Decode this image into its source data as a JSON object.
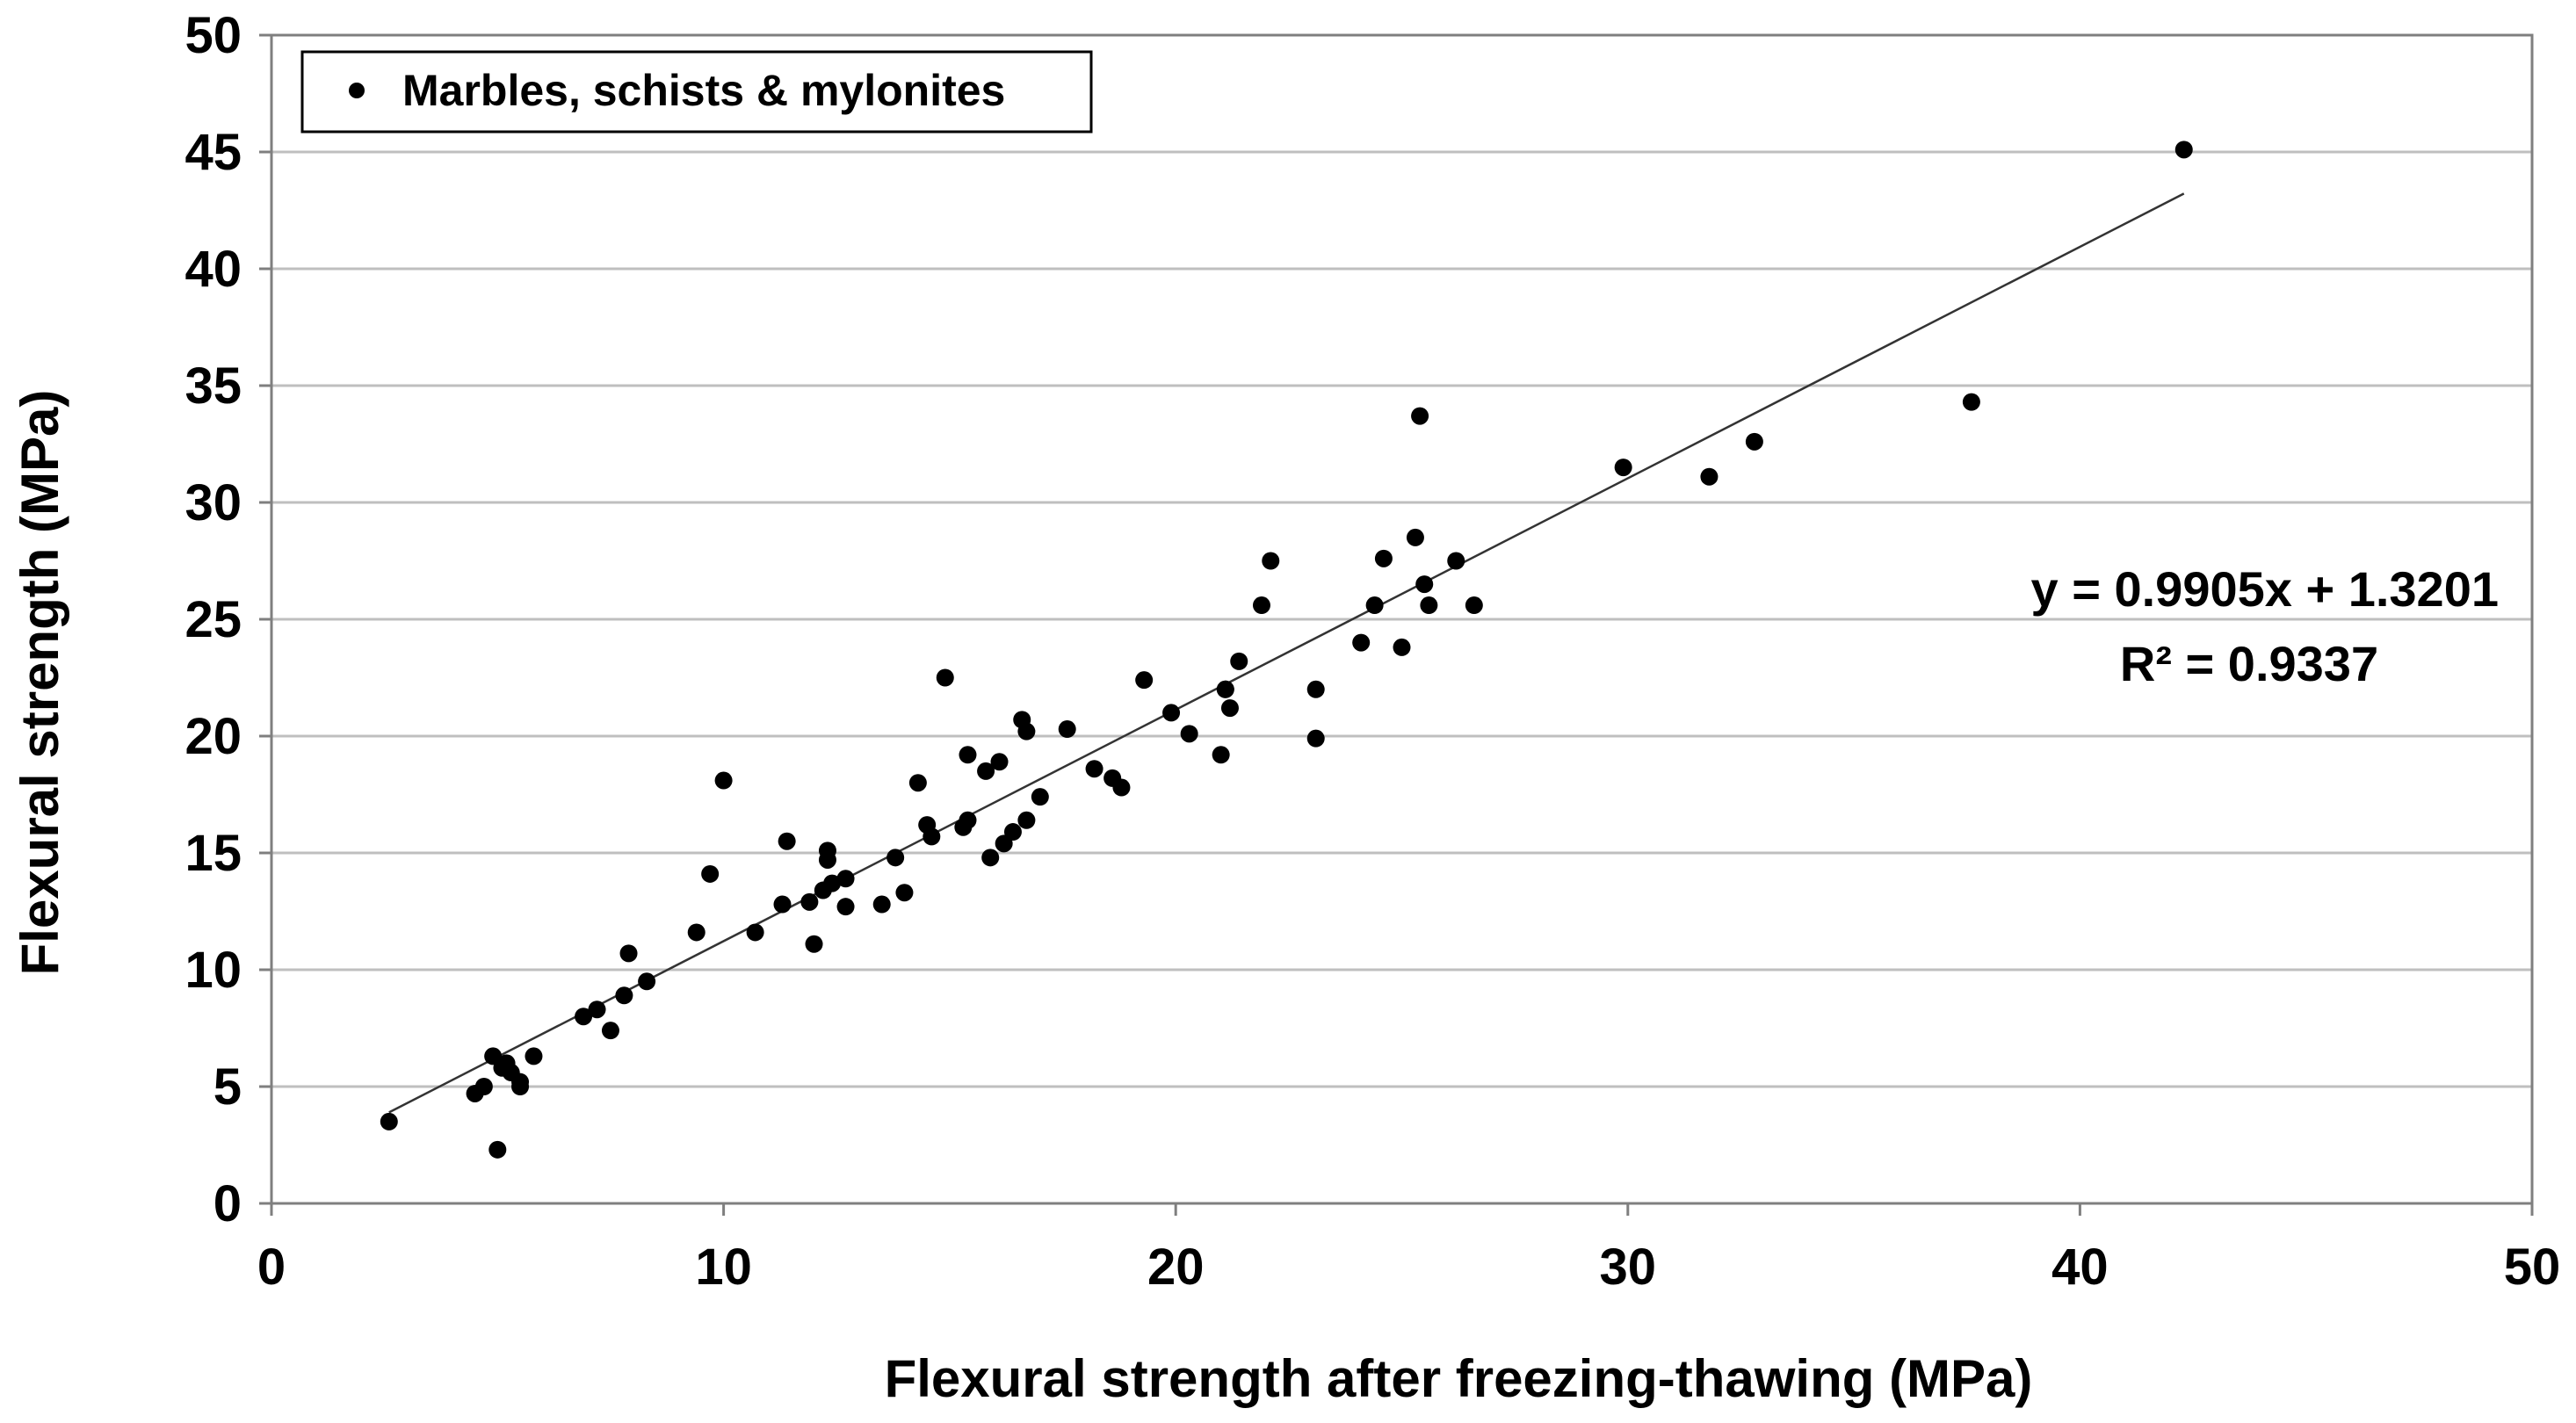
{
  "chart_data": {
    "type": "scatter",
    "xlabel": "Flexural strength after freezing-thawing (MPa)",
    "ylabel": "Flexural strength (MPa)",
    "xlim": [
      0,
      50
    ],
    "ylim": [
      0,
      50
    ],
    "xticks": [
      0,
      10,
      20,
      30,
      40,
      50
    ],
    "yticks": [
      0,
      5,
      10,
      15,
      20,
      25,
      30,
      35,
      40,
      45,
      50
    ],
    "grid": "horizontal",
    "legend": {
      "position": "top-left",
      "entries": [
        "Marbles, schists & mylonites"
      ]
    },
    "series": [
      {
        "name": "Marbles, schists & mylonites",
        "x": [
          2.6,
          4.5,
          4.7,
          4.9,
          5.0,
          5.1,
          5.2,
          5.3,
          5.5,
          5.5,
          5.8,
          6.9,
          7.2,
          7.5,
          7.8,
          7.9,
          8.3,
          9.4,
          9.7,
          10.0,
          10.7,
          11.3,
          11.4,
          11.9,
          12.0,
          12.2,
          12.3,
          12.3,
          12.4,
          12.7,
          12.7,
          13.5,
          13.8,
          14.0,
          14.3,
          14.5,
          14.6,
          14.9,
          15.3,
          15.4,
          15.4,
          15.8,
          15.9,
          16.1,
          16.2,
          16.4,
          16.6,
          16.7,
          16.7,
          17.0,
          17.6,
          18.2,
          18.6,
          18.8,
          19.3,
          19.9,
          20.3,
          21.0,
          21.1,
          21.1,
          21.2,
          21.4,
          21.9,
          22.1,
          23.1,
          23.1,
          24.1,
          24.4,
          24.6,
          25.0,
          25.3,
          25.4,
          25.5,
          25.6,
          26.2,
          26.6,
          29.9,
          31.8,
          32.8,
          37.6,
          42.3
        ],
        "y": [
          3.5,
          4.7,
          5.0,
          6.3,
          2.3,
          5.8,
          6.0,
          5.6,
          5.0,
          5.2,
          6.3,
          8.0,
          8.3,
          7.4,
          8.9,
          10.7,
          9.5,
          11.6,
          14.1,
          18.1,
          11.6,
          12.8,
          15.5,
          12.9,
          11.1,
          13.4,
          15.1,
          14.7,
          13.7,
          13.9,
          12.7,
          12.8,
          14.8,
          13.3,
          18.0,
          16.2,
          15.7,
          22.5,
          16.1,
          16.4,
          19.2,
          18.5,
          14.8,
          18.9,
          15.4,
          15.9,
          20.7,
          20.2,
          16.4,
          17.4,
          20.3,
          18.6,
          18.2,
          17.8,
          22.4,
          21.0,
          20.1,
          19.2,
          22.0,
          22.0,
          21.2,
          23.2,
          25.6,
          27.5,
          22.0,
          19.9,
          24.0,
          25.6,
          27.6,
          23.8,
          28.5,
          33.7,
          26.5,
          25.6,
          27.5,
          25.6,
          31.5,
          31.1,
          32.6,
          34.3,
          45.1
        ]
      }
    ],
    "trendline": {
      "slope": 0.9905,
      "intercept": 1.3201,
      "x_range": [
        2.6,
        42.3
      ]
    },
    "annotations": {
      "equation": "y = 0.9905x + 1.3201",
      "r2_label": "R² = 0.9337"
    }
  }
}
